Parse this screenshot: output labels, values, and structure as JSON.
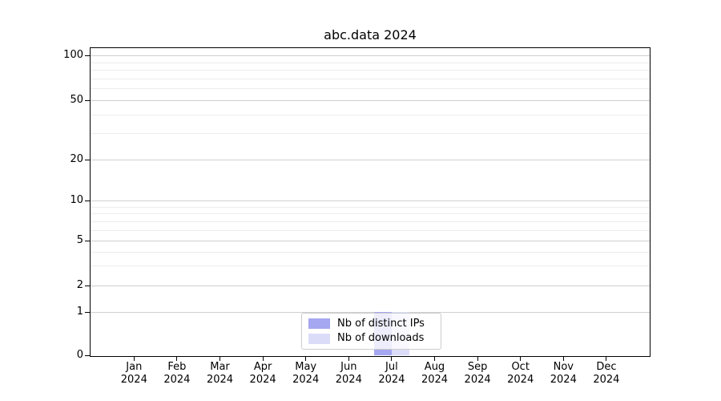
{
  "chart_data": {
    "type": "bar",
    "title": "abc.data 2024",
    "categories": [
      "Jan 2024",
      "Feb 2024",
      "Mar 2024",
      "Apr 2024",
      "May 2024",
      "Jun 2024",
      "Jul 2024",
      "Aug 2024",
      "Sep 2024",
      "Oct 2024",
      "Nov 2024",
      "Dec 2024"
    ],
    "series": [
      {
        "name": "Nb of distinct IPs",
        "color": "#a5a7f0",
        "values": [
          0,
          0,
          0,
          0,
          0,
          0,
          1,
          0,
          0,
          0,
          0,
          0
        ]
      },
      {
        "name": "Nb of downloads",
        "color": "#dbddf8",
        "values": [
          0,
          0,
          0,
          0,
          0,
          0,
          1,
          0,
          0,
          0,
          0,
          0
        ]
      }
    ],
    "y_axis": {
      "scale": "symlog",
      "major_ticks": [
        100,
        50,
        20,
        10,
        5,
        2,
        1,
        0
      ],
      "minor_ticks": [
        90,
        80,
        70,
        60,
        40,
        30,
        9,
        8,
        7,
        6,
        4,
        3
      ],
      "ylim": [
        0,
        113
      ],
      "grid": true
    },
    "legend": {
      "position": "lower center inside",
      "framealpha": 0.8
    }
  },
  "colors": {
    "grid_major": "#cfcfcf",
    "grid_minor": "#ececec",
    "spine": "#000000",
    "text": "#000000",
    "legend_border": "#cccccc",
    "background": "#ffffff"
  }
}
